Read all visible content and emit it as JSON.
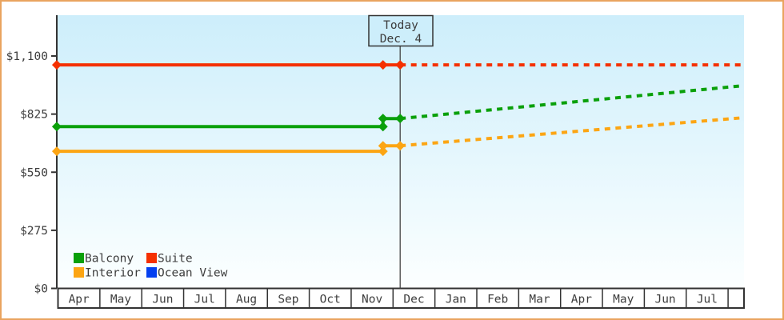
{
  "window": {
    "border_color": "#e9a45f",
    "background_color": "#ffffff",
    "plot_bg_top": "#cdeefb",
    "plot_bg_bottom": "#fcffff",
    "axis_color": "#333333",
    "text_color": "#3d3d3d",
    "today_line_color": "#444444"
  },
  "chart_data": {
    "type": "line",
    "title": "",
    "xlabel": "",
    "ylabel": "",
    "currency": "USD",
    "ylim": [
      0,
      1300
    ],
    "grid": false,
    "y_axis": {
      "ticks": [
        0,
        275,
        550,
        825,
        1100
      ],
      "tick_labels": [
        "$0",
        "$275",
        "$550",
        "$825",
        "$1,100"
      ]
    },
    "x_axis": {
      "months": [
        "Apr",
        "May",
        "Jun",
        "Jul",
        "Aug",
        "Sep",
        "Oct",
        "Nov",
        "Dec",
        "Jan",
        "Feb",
        "Mar",
        "Apr",
        "May",
        "Jun",
        "Jul"
      ],
      "trailing_empty_cell": true
    },
    "today": {
      "line1": "Today",
      "line2": "Dec. 4",
      "month_index": 8.17
    },
    "series": [
      {
        "name": "Suite",
        "color": "#f53000",
        "history": [
          [
            -0.03,
            1058
          ],
          [
            7.76,
            1058
          ],
          [
            8.17,
            1058
          ]
        ],
        "forecast": [
          [
            8.17,
            1058
          ],
          [
            16.38,
            1058
          ]
        ]
      },
      {
        "name": "Balcony",
        "color": "#0aa00a",
        "history": [
          [
            -0.03,
            766
          ],
          [
            7.76,
            766
          ],
          [
            7.76,
            804
          ],
          [
            8.17,
            804
          ]
        ],
        "forecast": [
          [
            8.17,
            804
          ],
          [
            16.38,
            960
          ]
        ]
      },
      {
        "name": "Interior",
        "color": "#fca513",
        "history": [
          [
            -0.03,
            649
          ],
          [
            7.76,
            649
          ],
          [
            7.76,
            675
          ],
          [
            8.17,
            675
          ]
        ],
        "forecast": [
          [
            8.17,
            675
          ],
          [
            16.38,
            808
          ]
        ]
      },
      {
        "name": "Ocean View",
        "color": "#0440f0",
        "history": [],
        "forecast": []
      }
    ],
    "legend": {
      "position": "bottom-left-inside",
      "columns": 2,
      "items": [
        {
          "label": "Balcony",
          "color": "#0aa00a"
        },
        {
          "label": "Suite",
          "color": "#f53000"
        },
        {
          "label": "Interior",
          "color": "#fca513"
        },
        {
          "label": "Ocean View",
          "color": "#0440f0"
        }
      ]
    }
  }
}
